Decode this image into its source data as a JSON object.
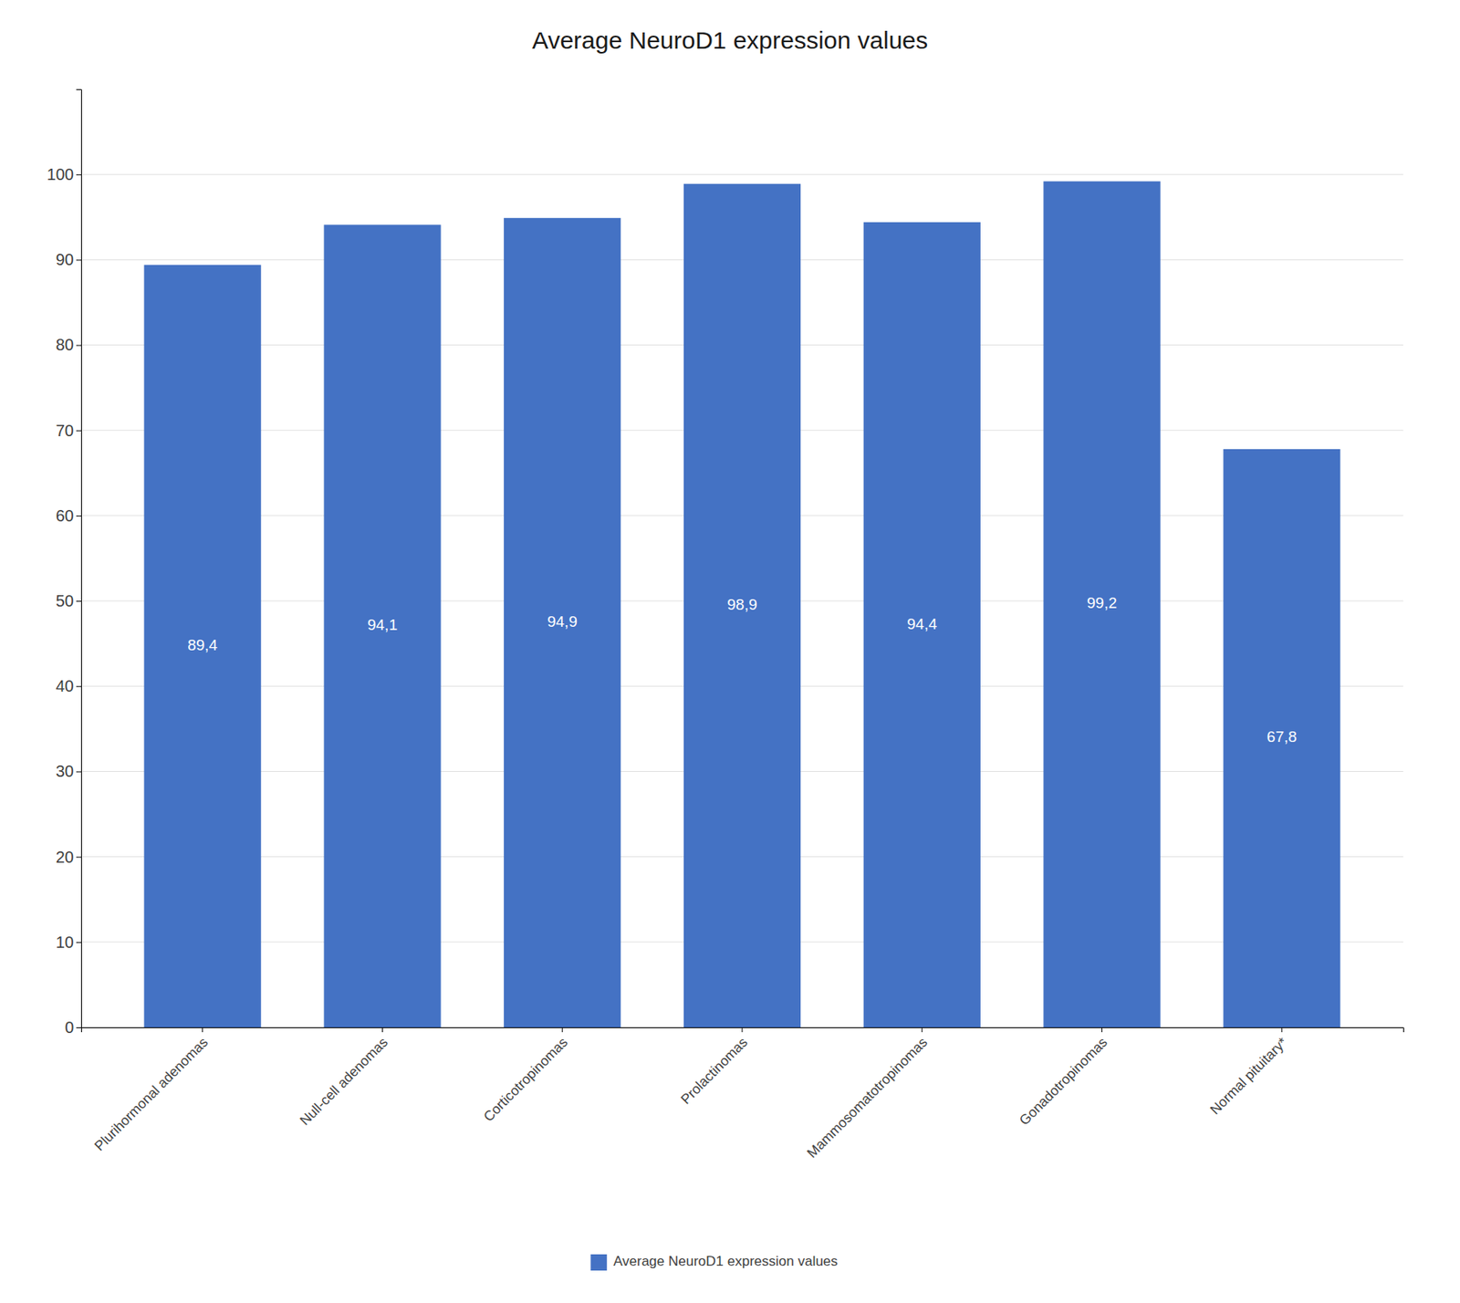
{
  "chart_data": {
    "type": "bar",
    "title": "Average NeuroD1 expression values",
    "categories": [
      "Plurihormonal adenomas",
      "Null-cell adenomas",
      "Corticotropinomas",
      "Prolactinomas",
      "Mammosomatotropinomas",
      "Gonadotropinomas",
      "Normal pituitary*"
    ],
    "series": [
      {
        "name": "Average NeuroD1 expression values",
        "color": "#4472C4",
        "values": [
          89.4,
          94.1,
          94.9,
          98.9,
          94.4,
          99.2,
          67.8
        ],
        "value_labels": [
          "89,4",
          "94,1",
          "94,9",
          "98,9",
          "94,4",
          "99,2",
          "67,8"
        ]
      }
    ],
    "ylim": [
      0,
      110
    ],
    "yticks": [
      0,
      10,
      20,
      30,
      40,
      50,
      60,
      70,
      80,
      90,
      100
    ],
    "grid": true,
    "legend": "bottom",
    "data_labels": true
  }
}
